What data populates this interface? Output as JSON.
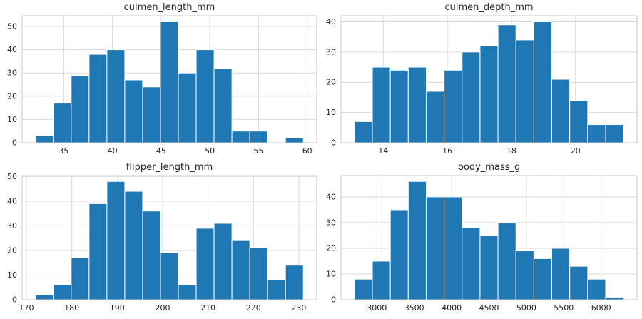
{
  "figure": {
    "background": "#ffffff",
    "bar_color": "#1f77b4",
    "bar_edge_color": "#ffffff",
    "grid_color": "#d9d9d9",
    "spine_color": "#c9c9c9",
    "text_color": "#262626"
  },
  "chart_data": [
    {
      "type": "bar",
      "subtype": "histogram",
      "title": "culmen_length_mm",
      "xlabel": "",
      "ylabel": "",
      "grid": true,
      "legend": false,
      "bins": {
        "start": 32.1,
        "end": 59.6,
        "count": 15
      },
      "values": [
        3,
        17,
        29,
        38,
        40,
        27,
        24,
        52,
        30,
        40,
        32,
        5,
        5,
        0,
        2
      ],
      "xticks": [
        35,
        40,
        45,
        50,
        55,
        60
      ],
      "yticks": [
        0,
        10,
        20,
        30,
        40,
        50
      ],
      "xlim": [
        30.725,
        60.975
      ],
      "ylim": [
        0,
        54.6
      ]
    },
    {
      "type": "bar",
      "subtype": "histogram",
      "title": "culmen_depth_mm",
      "xlabel": "",
      "ylabel": "",
      "grid": true,
      "legend": false,
      "bins": {
        "start": 13.1,
        "end": 21.5,
        "count": 15
      },
      "values": [
        7,
        25,
        24,
        25,
        17,
        24,
        30,
        32,
        39,
        34,
        40,
        21,
        14,
        6,
        6
      ],
      "xticks": [
        14,
        16,
        18,
        20
      ],
      "yticks": [
        0,
        10,
        20,
        30,
        40
      ],
      "xlim": [
        12.68,
        21.92
      ],
      "ylim": [
        0,
        42
      ]
    },
    {
      "type": "bar",
      "subtype": "histogram",
      "title": "flipper_length_mm",
      "xlabel": "",
      "ylabel": "",
      "grid": true,
      "legend": false,
      "bins": {
        "start": 172,
        "end": 231,
        "count": 15
      },
      "values": [
        2,
        6,
        17,
        39,
        48,
        44,
        36,
        19,
        6,
        29,
        31,
        24,
        21,
        8,
        14
      ],
      "xticks": [
        170,
        180,
        190,
        200,
        210,
        220,
        230
      ],
      "yticks": [
        0,
        10,
        20,
        30,
        40,
        50
      ],
      "xlim": [
        169.05,
        233.95
      ],
      "ylim": [
        0,
        50.4
      ]
    },
    {
      "type": "bar",
      "subtype": "histogram",
      "title": "body_mass_g",
      "xlabel": "",
      "ylabel": "",
      "grid": true,
      "legend": false,
      "bins": {
        "start": 2700,
        "end": 6300,
        "count": 15
      },
      "values": [
        8,
        15,
        35,
        46,
        40,
        40,
        28,
        25,
        30,
        19,
        16,
        20,
        13,
        8,
        1
      ],
      "xticks": [
        3000,
        3500,
        4000,
        4500,
        5000,
        5500,
        6000
      ],
      "yticks": [
        0,
        10,
        20,
        30,
        40
      ],
      "xlim": [
        2520,
        6480
      ],
      "ylim": [
        0,
        48.3
      ]
    }
  ]
}
